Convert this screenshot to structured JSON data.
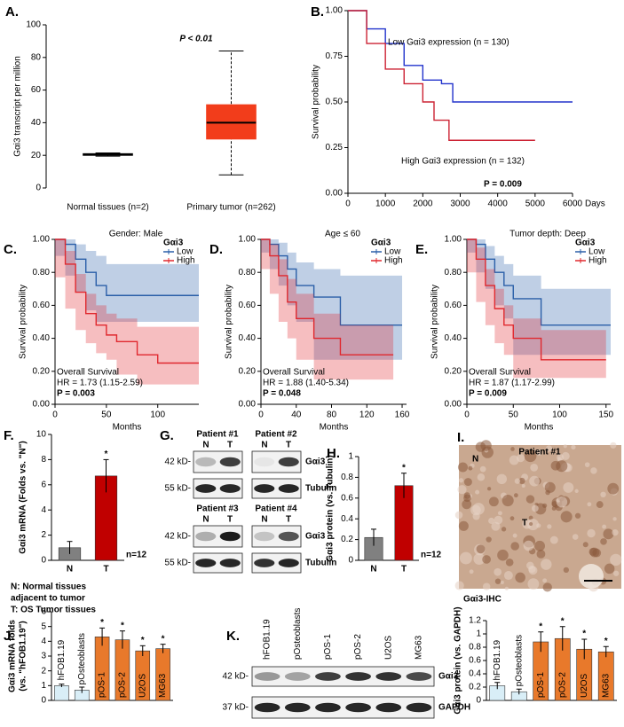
{
  "chart_data": [
    {
      "panel": "A.",
      "type": "box",
      "categories": [
        "Normal tissues (n=2)",
        "Primary tumor (n=262)"
      ],
      "category_colors": [
        "#000000",
        "#cc2222"
      ],
      "boxes": [
        {
          "min": 19.5,
          "q1": 20,
          "median": 20.5,
          "q3": 21,
          "max": 21.5
        },
        {
          "min": 8,
          "q1": 30,
          "median": 40,
          "q3": 51,
          "max": 84
        }
      ],
      "colors": [
        "#000000",
        "#f23d1b"
      ],
      "ylim": [
        0,
        100
      ],
      "yticks": [
        0,
        20,
        40,
        60,
        80,
        100
      ],
      "ylabel": "Gαi3 transcript per million",
      "annotations": [
        "P < 0.01"
      ]
    },
    {
      "panel": "B.",
      "type": "survival",
      "legend": "inline",
      "xlim": [
        0,
        6000
      ],
      "xticks": [
        0,
        1000,
        2000,
        3000,
        4000,
        5000,
        6000
      ],
      "ylim": [
        0,
        1
      ],
      "yticks": [
        {
          "value": 0,
          "label": "0.00"
        },
        {
          "value": 0.25,
          "label": "0.25"
        },
        {
          "value": 0.5,
          "label": "0.50"
        },
        {
          "value": 0.75,
          "label": "0.75"
        },
        {
          "value": 1,
          "label": "1.00"
        }
      ],
      "xlabel": "Days",
      "ylabel": "Survival probability",
      "series": [
        {
          "name": "Low Gαi3 expression (n = 130)",
          "color": "#2233cc",
          "x": [
            0,
            500,
            1000,
            1500,
            2000,
            2500,
            2800,
            3000,
            6000
          ],
          "values": [
            1,
            0.9,
            0.82,
            0.7,
            0.62,
            0.6,
            0.5,
            0.5,
            0.5
          ]
        },
        {
          "name": "High Gαi3 expression (n = 132)",
          "color": "#cc2233",
          "x": [
            0,
            500,
            1000,
            1500,
            2000,
            2300,
            2700,
            5000
          ],
          "values": [
            1,
            0.82,
            0.68,
            0.6,
            0.5,
            0.4,
            0.29,
            0.29
          ]
        }
      ],
      "annotations": [
        "P = 0.009"
      ]
    },
    {
      "panel": "C.",
      "type": "survival",
      "subtitle": "Gender: Male",
      "legend": "upper right",
      "legend_title": "Gαi3",
      "xlim": [
        0,
        140
      ],
      "xticks": [
        0,
        50,
        100
      ],
      "ylim": [
        0,
        1
      ],
      "yticks": [
        {
          "value": 0,
          "label": "0.00"
        },
        {
          "value": 0.2,
          "label": "0.20"
        },
        {
          "value": 0.4,
          "label": "0.40"
        },
        {
          "value": 0.6,
          "label": "0.60"
        },
        {
          "value": 0.8,
          "label": "0.80"
        },
        {
          "value": 1,
          "label": "1.00"
        }
      ],
      "xlabel": "Months",
      "ylabel": "Survival probability",
      "series": [
        {
          "name": "Low",
          "color": "#2a5fa8",
          "x": [
            0,
            10,
            20,
            30,
            40,
            50,
            60,
            140
          ],
          "values": [
            1,
            0.97,
            0.88,
            0.8,
            0.72,
            0.66,
            0.66,
            0.66
          ],
          "lower": [
            1,
            0.9,
            0.78,
            0.68,
            0.57,
            0.5,
            0.5,
            0.5
          ],
          "upper": [
            1,
            1,
            0.97,
            0.93,
            0.9,
            0.85,
            0.85,
            0.85
          ]
        },
        {
          "name": "High",
          "color": "#e0282e",
          "x": [
            0,
            10,
            20,
            30,
            40,
            50,
            60,
            80,
            100,
            140
          ],
          "values": [
            1,
            0.85,
            0.68,
            0.55,
            0.48,
            0.42,
            0.38,
            0.3,
            0.25,
            0.25
          ],
          "lower": [
            1,
            0.77,
            0.58,
            0.45,
            0.37,
            0.31,
            0.27,
            0.18,
            0.12,
            0.12
          ],
          "upper": [
            1,
            0.93,
            0.79,
            0.67,
            0.6,
            0.55,
            0.52,
            0.47,
            0.47,
            0.47
          ]
        }
      ],
      "annotations": [
        "Overall Survival",
        "HR = 1.73 (1.15-2.59)",
        "P = 0.003"
      ]
    },
    {
      "panel": "D.",
      "type": "survival",
      "subtitle": "Age ≤ 60",
      "legend": "upper right",
      "legend_title": "Gαi3",
      "xlim": [
        0,
        165
      ],
      "xticks": [
        0,
        40,
        80,
        120,
        160
      ],
      "ylim": [
        0,
        1
      ],
      "yticks": [
        {
          "value": 0,
          "label": "0.00"
        },
        {
          "value": 0.2,
          "label": "0.20"
        },
        {
          "value": 0.4,
          "label": "0.40"
        },
        {
          "value": 0.6,
          "label": "0.60"
        },
        {
          "value": 0.8,
          "label": "0.80"
        },
        {
          "value": 1,
          "label": "1.00"
        }
      ],
      "xlabel": "Months",
      "ylabel": "Survival probability",
      "series": [
        {
          "name": "Low",
          "color": "#2a5fa8",
          "x": [
            0,
            10,
            20,
            30,
            40,
            60,
            90,
            160
          ],
          "values": [
            1,
            0.97,
            0.9,
            0.82,
            0.72,
            0.65,
            0.48,
            0.48
          ],
          "lower": [
            1,
            0.92,
            0.82,
            0.72,
            0.6,
            0.5,
            0.27,
            0.27
          ],
          "upper": [
            1,
            1,
            0.98,
            0.92,
            0.86,
            0.82,
            0.78,
            0.78
          ]
        },
        {
          "name": "High",
          "color": "#e0282e",
          "x": [
            0,
            10,
            20,
            30,
            40,
            60,
            90,
            150
          ],
          "values": [
            1,
            0.9,
            0.78,
            0.62,
            0.52,
            0.4,
            0.3,
            0.3
          ],
          "lower": [
            1,
            0.82,
            0.67,
            0.5,
            0.4,
            0.27,
            0.15,
            0.15
          ],
          "upper": [
            1,
            0.97,
            0.88,
            0.76,
            0.67,
            0.55,
            0.48,
            0.48
          ]
        }
      ],
      "annotations": [
        "Overall Survival",
        "HR = 1.88 (1.40-5.34)",
        "P = 0.048"
      ]
    },
    {
      "panel": "E.",
      "type": "survival",
      "subtitle": "Tumor depth: Deep",
      "legend": "upper right",
      "legend_title": "Gαi3",
      "xlim": [
        0,
        155
      ],
      "xticks": [
        0,
        50,
        100,
        150
      ],
      "ylim": [
        0,
        1
      ],
      "yticks": [
        {
          "value": 0,
          "label": "0.00"
        },
        {
          "value": 0.2,
          "label": "0.20"
        },
        {
          "value": 0.4,
          "label": "0.40"
        },
        {
          "value": 0.6,
          "label": "0.60"
        },
        {
          "value": 0.8,
          "label": "0.80"
        },
        {
          "value": 1,
          "label": "1.00"
        }
      ],
      "xlabel": "Months",
      "ylabel": "Survival probability",
      "series": [
        {
          "name": "Low",
          "color": "#2a5fa8",
          "x": [
            0,
            10,
            20,
            30,
            40,
            50,
            80,
            155
          ],
          "values": [
            1,
            0.97,
            0.88,
            0.8,
            0.72,
            0.64,
            0.48,
            0.48
          ],
          "lower": [
            1,
            0.92,
            0.8,
            0.7,
            0.6,
            0.52,
            0.3,
            0.3
          ],
          "upper": [
            1,
            1,
            0.96,
            0.9,
            0.85,
            0.78,
            0.7,
            0.7
          ]
        },
        {
          "name": "High",
          "color": "#e0282e",
          "x": [
            0,
            10,
            20,
            30,
            40,
            50,
            80,
            150
          ],
          "values": [
            1,
            0.88,
            0.72,
            0.58,
            0.48,
            0.4,
            0.27,
            0.27
          ],
          "lower": [
            1,
            0.8,
            0.62,
            0.48,
            0.37,
            0.3,
            0.16,
            0.16
          ],
          "upper": [
            1,
            0.95,
            0.82,
            0.7,
            0.6,
            0.52,
            0.45,
            0.45
          ]
        }
      ],
      "annotations": [
        "Overall Survival",
        "HR = 1.87 (1.17-2.99)",
        "P = 0.009"
      ]
    },
    {
      "panel": "F.",
      "type": "bar",
      "label_position": "below",
      "categories": [
        "N",
        "T"
      ],
      "values": [
        1,
        6.7
      ],
      "errors": [
        0.5,
        1.3
      ],
      "colors": [
        "#808080",
        "#c00000"
      ],
      "ylim": [
        0,
        10
      ],
      "yticks": [
        0,
        2,
        4,
        6,
        8,
        10
      ],
      "ylabel": "Gαi3 mRNA (Folds vs. \"N\")",
      "marks": [
        null,
        "*"
      ],
      "annotations": [
        "n=12"
      ],
      "notes": [
        "N: Normal tissues",
        "adjacent to tumor",
        "T: OS Tumor tissues"
      ],
      "note_colors": [
        "#999999",
        "#999999",
        "#cc0000"
      ]
    },
    {
      "panel": "H.",
      "type": "bar",
      "label_position": "below",
      "categories": [
        "N",
        "T"
      ],
      "values": [
        0.22,
        0.72
      ],
      "errors": [
        0.08,
        0.12
      ],
      "colors": [
        "#808080",
        "#c00000"
      ],
      "ylim": [
        0,
        1
      ],
      "yticks": [
        0,
        0.2,
        0.4,
        0.6,
        0.8,
        1
      ],
      "ylabel": "Gαi3 protein (vs. Tubulin)",
      "marks": [
        null,
        "*"
      ],
      "annotations": [
        "n=12"
      ]
    },
    {
      "panel": "J.",
      "type": "bar",
      "label_position": "in-bar",
      "categories": [
        "hFOB1.19",
        "pOsteoblasts",
        "pOS-1",
        "pOS-2",
        "U2OS",
        "MG63"
      ],
      "values": [
        1,
        0.7,
        4.3,
        4.1,
        3.35,
        3.5
      ],
      "errors": [
        0.1,
        0.2,
        0.6,
        0.6,
        0.35,
        0.3
      ],
      "colors": [
        "#d9eef7",
        "#d9eef7",
        "#e8792b",
        "#e8792b",
        "#e8792b",
        "#e8792b"
      ],
      "ylim": [
        0,
        6
      ],
      "yticks": [
        0,
        1,
        2,
        3,
        4,
        5,
        6
      ],
      "ylabel": [
        "Gαi3 mRNA folds",
        "(vs. \"hFOB1.19\")"
      ],
      "marks": [
        null,
        null,
        "*",
        "*",
        "*",
        "*"
      ]
    },
    {
      "type": "bar",
      "label_position": "in-bar",
      "categories": [
        "hFOB1.19",
        "pOsteoblasts",
        "pOS-1",
        "pOS-2",
        "U2OS",
        "MG63"
      ],
      "values": [
        0.22,
        0.13,
        0.88,
        0.93,
        0.77,
        0.73
      ],
      "errors": [
        0.05,
        0.04,
        0.15,
        0.18,
        0.15,
        0.08
      ],
      "colors": [
        "#d9eef7",
        "#d9eef7",
        "#e8792b",
        "#e8792b",
        "#e8792b",
        "#e8792b"
      ],
      "ylim": [
        0,
        1.2
      ],
      "yticks": [
        0,
        0.2,
        0.4,
        0.6,
        0.8,
        1,
        1.2
      ],
      "ylabel": "Gαi3 protein (vs. GAPDH)",
      "marks": [
        null,
        null,
        "*",
        "*",
        "*",
        "*"
      ]
    }
  ],
  "blot_G": {
    "panel": "G.",
    "patients": [
      "Patient #1",
      "Patient #2",
      "Patient #3",
      "Patient #4"
    ],
    "lanes": [
      "N",
      "T"
    ],
    "markers": [
      "42 kD-",
      "55 kD-"
    ],
    "proteins": [
      "Gαi3",
      "Tubulin"
    ]
  },
  "ihc_I": {
    "panel": "I.",
    "title": "Patient #1",
    "labels": [
      "N",
      "T"
    ],
    "caption": "Gαi3-IHC"
  },
  "blot_K": {
    "panel": "K.",
    "lanes": [
      "hFOB1.19",
      "pOsteoblasts",
      "pOS-1",
      "pOS-2",
      "U2OS",
      "MG63"
    ],
    "markers": [
      "42 kD-",
      "37 kD-"
    ],
    "proteins": [
      "Gαi3",
      "GAPDH"
    ]
  }
}
